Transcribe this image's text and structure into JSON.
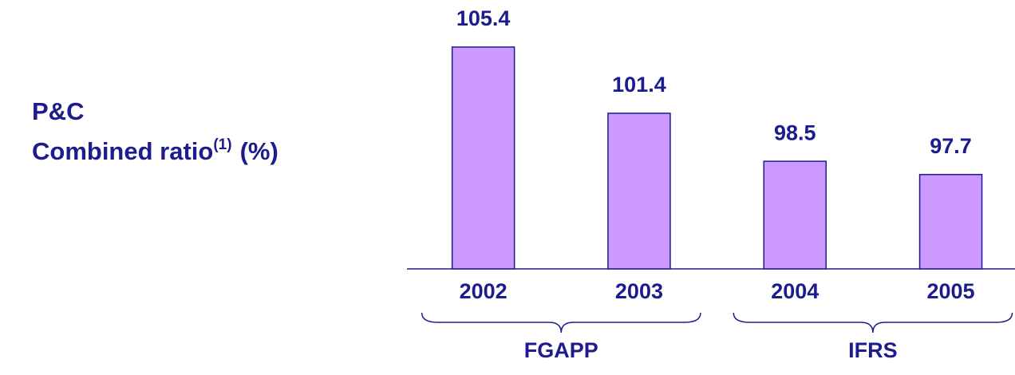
{
  "chart_data": {
    "type": "bar",
    "title": [
      "P&C",
      "Combined ratio",
      "(1)",
      "(%)"
    ],
    "categories": [
      "2002",
      "2003",
      "2004",
      "2005"
    ],
    "values": [
      105.4,
      101.4,
      98.5,
      97.7
    ],
    "color": "#cc99ff",
    "edge_color": "#1c1c8e",
    "ylim": [
      92,
      106
    ],
    "groups": [
      {
        "name": "FGAPP",
        "categories": [
          "2002",
          "2003"
        ]
      },
      {
        "name": "IFRS",
        "categories": [
          "2004",
          "2005"
        ]
      }
    ]
  }
}
